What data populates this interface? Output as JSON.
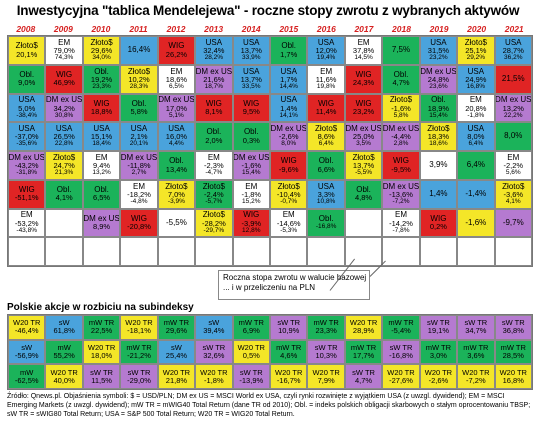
{
  "title": "Inwestycyjna \"tablica Mendelejewa\" - roczne stopy zwrotu z wybranych aktywów",
  "colors": {
    "year_text": "#d62020",
    "WIG": "#e02424",
    "USA": "#4aa3dc",
    "Obl.": "#1bb35a",
    "Złoto$": "#f4e628",
    "DM ex US": "#b57ad0",
    "EM": "#ffffff",
    "W20 TR": "#f4e628",
    "sW": "#4aa3dc",
    "mW TR": "#1bb35a",
    "sW TR": "#b57ad0"
  },
  "chart_data": [
    {
      "type": "table",
      "title": "Inwestycyjna \"tablica Mendelejewa\" - roczne stopy zwrotu z wybranych aktywów",
      "years": [
        "2008",
        "2009",
        "2010",
        "2011",
        "2012",
        "2013",
        "2014",
        "2015",
        "2016",
        "2017",
        "2018",
        "2019",
        "2020",
        "2021"
      ],
      "columns": [
        [
          {
            "name": "Złoto$",
            "v1": "20,1%",
            "v2": ""
          },
          {
            "name": "Obl.",
            "v1": "9,0%",
            "v2": ""
          },
          {
            "name": "USA",
            "v1": "5,0%",
            "v2": "-38,4%"
          },
          {
            "name": "USA",
            "v1": "-37,0%",
            "v2": "-35,6%"
          },
          {
            "name": "DM ex US",
            "v1": "-43,2%",
            "v2": "-31,8%"
          },
          {
            "name": "WIG",
            "v1": "-51,1%",
            "v2": ""
          },
          {
            "name": "EM",
            "v1": "-53,2%",
            "v2": "-43,8%"
          },
          {
            "name": "",
            "v1": "",
            "v2": ""
          }
        ],
        [
          {
            "name": "EM",
            "v1": "79,0%",
            "v2": "74,3%"
          },
          {
            "name": "WIG",
            "v1": "46,9%",
            "v2": ""
          },
          {
            "name": "DM ex US",
            "v1": "34,2%",
            "v2": "30,8%"
          },
          {
            "name": "USA",
            "v1": "26,5%",
            "v2": "22,8%"
          },
          {
            "name": "Złoto$",
            "v1": "24,7%",
            "v2": "21,3%"
          },
          {
            "name": "Obl.",
            "v1": "4,1%",
            "v2": ""
          },
          {
            "name": "",
            "v1": "",
            "v2": ""
          },
          {
            "name": "",
            "v1": "",
            "v2": ""
          }
        ],
        [
          {
            "name": "Złoto$",
            "v1": "29,6%",
            "v2": "34,0%"
          },
          {
            "name": "Obl.",
            "v1": "19,2%",
            "v2": "23,3%"
          },
          {
            "name": "WIG",
            "v1": "18,8%",
            "v2": ""
          },
          {
            "name": "USA",
            "v1": "15,1%",
            "v2": "18,4%"
          },
          {
            "name": "EM",
            "v1": "9,4%",
            "v2": "13,2%"
          },
          {
            "name": "Obl.",
            "v1": "6,5%",
            "v2": ""
          },
          {
            "name": "DM ex US",
            "v1": "8,9%",
            "v2": ""
          },
          {
            "name": "",
            "v1": "",
            "v2": ""
          }
        ],
        [
          {
            "name": "",
            "v1": "16,4%",
            "v2": ""
          },
          {
            "name": "Złoto$",
            "v1": "10,2%",
            "v2": "28,3%"
          },
          {
            "name": "Obl.",
            "v1": "5,8%",
            "v2": ""
          },
          {
            "name": "USA",
            "v1": "2,1%",
            "v2": "20,1%"
          },
          {
            "name": "DM ex US",
            "v1": "-11,8%",
            "v2": "2,7%"
          },
          {
            "name": "EM",
            "v1": "-18,2%",
            "v2": "-4,8%"
          },
          {
            "name": "WIG",
            "v1": "-20,8%",
            "v2": ""
          },
          {
            "name": "",
            "v1": "",
            "v2": ""
          }
        ],
        [
          {
            "name": "WIG",
            "v1": "26,2%",
            "v2": ""
          },
          {
            "name": "EM",
            "v1": "18,6%",
            "v2": "6,5%"
          },
          {
            "name": "DM ex US",
            "v1": "17,0%",
            "v2": "5,1%"
          },
          {
            "name": "USA",
            "v1": "16,0%",
            "v2": "4,4%"
          },
          {
            "name": "Obl.",
            "v1": "13,4%",
            "v2": ""
          },
          {
            "name": "Złoto$",
            "v1": "7,0%",
            "v2": "-3,9%"
          },
          {
            "name": "",
            "v1": "-5,5%",
            "v2": ""
          },
          {
            "name": "",
            "v1": "",
            "v2": ""
          }
        ],
        [
          {
            "name": "USA",
            "v1": "32,4%",
            "v2": "28,2%"
          },
          {
            "name": "DM ex US",
            "v1": "21,6%",
            "v2": "18,7%"
          },
          {
            "name": "WIG",
            "v1": "8,1%",
            "v2": ""
          },
          {
            "name": "Obl.",
            "v1": "2,0%",
            "v2": ""
          },
          {
            "name": "EM",
            "v1": "-2,3%",
            "v2": "-4,7%"
          },
          {
            "name": "Złoto$",
            "v1": "-2,4%",
            "v2": "-5,7%"
          },
          {
            "name": "Złoto$",
            "v1": "-28,2%",
            "v2": "-29,7%"
          },
          {
            "name": "",
            "v1": "",
            "v2": ""
          }
        ],
        [
          {
            "name": "USA",
            "v1": "13,7%",
            "v2": "33,9%"
          },
          {
            "name": "USA",
            "v1": "13,7%",
            "v2": "33,5%"
          },
          {
            "name": "WIG",
            "v1": "9,5%",
            "v2": ""
          },
          {
            "name": "Obl.",
            "v1": "0,3%",
            "v2": ""
          },
          {
            "name": "DM ex US",
            "v1": "-1,6%",
            "v2": "15,4%"
          },
          {
            "name": "EM",
            "v1": "-1,8%",
            "v2": "15,2%"
          },
          {
            "name": "WIG",
            "v1": "-3,9%",
            "v2": "12,8%"
          },
          {
            "name": "",
            "v1": "",
            "v2": ""
          }
        ],
        [
          {
            "name": "Obl.",
            "v1": "1,7%",
            "v2": ""
          },
          {
            "name": "USA",
            "v1": "1,7%",
            "v2": "14,4%"
          },
          {
            "name": "USA",
            "v1": "1,4%",
            "v2": "14,1%"
          },
          {
            "name": "DM ex US",
            "v1": "-2,6%",
            "v2": "8,0%"
          },
          {
            "name": "WIG",
            "v1": "-9,6%",
            "v2": ""
          },
          {
            "name": "Złoto$",
            "v1": "-10,4%",
            "v2": "-0,7%"
          },
          {
            "name": "EM",
            "v1": "-14,6%",
            "v2": "-5,3%"
          },
          {
            "name": "",
            "v1": "",
            "v2": ""
          }
        ],
        [
          {
            "name": "USA",
            "v1": "12,0%",
            "v2": "19,4%"
          },
          {
            "name": "EM",
            "v1": "11,6%",
            "v2": "19,8%"
          },
          {
            "name": "WIG",
            "v1": "11,4%",
            "v2": ""
          },
          {
            "name": "Złoto$",
            "v1": "8,6%",
            "v2": "6,4%"
          },
          {
            "name": "Obl.",
            "v1": "6,6%",
            "v2": ""
          },
          {
            "name": "USA",
            "v1": "3,3%",
            "v2": "10,8%"
          },
          {
            "name": "Obl.",
            "v1": "",
            "v2": "-16,8%"
          },
          {
            "name": "",
            "v1": "",
            "v2": ""
          }
        ],
        [
          {
            "name": "EM",
            "v1": "37,8%",
            "v2": "14,5%"
          },
          {
            "name": "WIG",
            "v1": "24,3%",
            "v2": ""
          },
          {
            "name": "WIG",
            "v1": "23,2%",
            "v2": ""
          },
          {
            "name": "DM ex US",
            "v1": "25,0%",
            "v2": "3,5%"
          },
          {
            "name": "Złoto$",
            "v1": "13,7%",
            "v2": "-5,5%"
          },
          {
            "name": "Obl.",
            "v1": "4,8%",
            "v2": ""
          },
          {
            "name": "",
            "v1": "",
            "v2": ""
          },
          {
            "name": "",
            "v1": "",
            "v2": ""
          }
        ],
        [
          {
            "name": "",
            "v1": "7,5%",
            "v2": ""
          },
          {
            "name": "Obl.",
            "v1": "4,7%",
            "v2": ""
          },
          {
            "name": "Złoto$",
            "v1": "-1,6%",
            "v2": "5,8%"
          },
          {
            "name": "DM ex US",
            "v1": "-4,4%",
            "v2": "2,8%"
          },
          {
            "name": "WIG",
            "v1": "-9,5%",
            "v2": ""
          },
          {
            "name": "DM ex US",
            "v1": "-13,6%",
            "v2": "-7,2%"
          },
          {
            "name": "EM",
            "v1": "-14,2%",
            "v2": "-7,8%"
          },
          {
            "name": "",
            "v1": "",
            "v2": ""
          }
        ],
        [
          {
            "name": "USA",
            "v1": "31,5%",
            "v2": "23,2%"
          },
          {
            "name": "DM ex US",
            "v1": "24,8%",
            "v2": "23,6%"
          },
          {
            "name": "Obl.",
            "v1": "18,9%",
            "v2": "15,4%"
          },
          {
            "name": "Złoto$",
            "v1": "18,3%",
            "v2": "18,6%"
          },
          {
            "name": "",
            "v1": "3,9%",
            "v2": ""
          },
          {
            "name": "",
            "v1": "1,4%",
            "v2": ""
          },
          {
            "name": "WIG",
            "v1": "0,2%",
            "v2": ""
          },
          {
            "name": "",
            "v1": "",
            "v2": ""
          }
        ],
        [
          {
            "name": "Złoto$",
            "v1": "25,1%",
            "v2": "29,2%"
          },
          {
            "name": "USA",
            "v1": "24,9%",
            "v2": "16,8%"
          },
          {
            "name": "EM",
            "v1": "20,8%",
            "v2": "-1,8%"
          },
          {
            "name": "USA",
            "v1": "8,0%",
            "v2": "6,4%"
          },
          {
            "name": "",
            "v1": "6,4%",
            "v2": ""
          },
          {
            "name": "",
            "v1": "-1,4%",
            "v2": ""
          },
          {
            "name": "",
            "v1": "-1,6%",
            "v2": ""
          },
          {
            "name": "",
            "v1": "",
            "v2": ""
          }
        ],
        [
          {
            "name": "USA",
            "v1": "28,7%",
            "v2": "36,2%"
          },
          {
            "name": "",
            "v1": "21,5%",
            "v2": ""
          },
          {
            "name": "DM ex US",
            "v1": "13,2%",
            "v2": "22,2%"
          },
          {
            "name": "",
            "v1": "8,0%",
            "v2": ""
          },
          {
            "name": "EM",
            "v1": "-2,2%",
            "v2": "5,6%"
          },
          {
            "name": "Złoto$",
            "v1": "-3,6%",
            "v2": "4,1%"
          },
          {
            "name": "",
            "v1": "-9,7%",
            "v2": ""
          },
          {
            "name": "",
            "v1": "",
            "v2": ""
          }
        ]
      ],
      "cell_colors": [
        [
          "yellow",
          "green",
          "blue",
          "blue",
          "purple",
          "red",
          "white",
          "white"
        ],
        [
          "white",
          "red",
          "purple",
          "blue",
          "yellow",
          "green",
          "white",
          "white"
        ],
        [
          "yellow",
          "green",
          "red",
          "blue",
          "white",
          "green",
          "purple",
          "white"
        ],
        [
          "blue",
          "yellow",
          "green",
          "blue",
          "purple",
          "white",
          "red",
          "white"
        ],
        [
          "red",
          "white",
          "purple",
          "blue",
          "green",
          "yellow",
          "white",
          "white"
        ],
        [
          "blue",
          "purple",
          "red",
          "green",
          "white",
          "green",
          "yellow",
          "white"
        ],
        [
          "blue",
          "blue",
          "red",
          "green",
          "purple",
          "white",
          "red",
          "white"
        ],
        [
          "green",
          "blue",
          "blue",
          "purple",
          "red",
          "yellow",
          "white",
          "white"
        ],
        [
          "blue",
          "white",
          "red",
          "yellow",
          "green",
          "blue",
          "green",
          "white"
        ],
        [
          "white",
          "red",
          "red",
          "purple",
          "yellow",
          "green",
          "white",
          "white"
        ],
        [
          "green",
          "green",
          "yellow",
          "purple",
          "red",
          "purple",
          "white",
          "white"
        ],
        [
          "blue",
          "purple",
          "green",
          "yellow",
          "white",
          "blue",
          "red",
          "white"
        ],
        [
          "yellow",
          "blue",
          "white",
          "blue",
          "green",
          "blue",
          "yellow",
          "white"
        ],
        [
          "blue",
          "red",
          "purple",
          "green",
          "white",
          "yellow",
          "purple",
          "white"
        ]
      ]
    },
    {
      "type": "table",
      "title": "Polskie akcje w rozbiciu na subindeksy",
      "rows": [
        [
          {
            "name": "W20 TR",
            "v1": "-46,4%"
          },
          {
            "name": "sW",
            "v1": "61,8%"
          },
          {
            "name": "mW TR",
            "v1": "22,5%"
          },
          {
            "name": "W20 TR",
            "v1": "-18,1%"
          },
          {
            "name": "mW TR",
            "v1": "29,6%"
          },
          {
            "name": "sW",
            "v1": "39,4%"
          },
          {
            "name": "mW TR",
            "v1": "6,9%"
          },
          {
            "name": "sW TR",
            "v1": "10,9%"
          },
          {
            "name": "mW TR",
            "v1": "23,3%"
          },
          {
            "name": "W20 TR",
            "v1": "28,9%"
          },
          {
            "name": "mW TR",
            "v1": "-5,4%"
          },
          {
            "name": "sW TR",
            "v1": "19,1%"
          },
          {
            "name": "sW TR",
            "v1": "34,7%"
          },
          {
            "name": "sW TR",
            "v1": "36,8%"
          }
        ],
        [
          {
            "name": "sW",
            "v1": "-56,9%"
          },
          {
            "name": "mW",
            "v1": "55,2%"
          },
          {
            "name": "W20 TR",
            "v1": "18,0%"
          },
          {
            "name": "mW TR",
            "v1": "-21,2%"
          },
          {
            "name": "sW",
            "v1": "25,4%"
          },
          {
            "name": "sW TR",
            "v1": "32,6%"
          },
          {
            "name": "W20 TR",
            "v1": "0,5%"
          },
          {
            "name": "mW TR",
            "v1": "4,6%"
          },
          {
            "name": "sW TR",
            "v1": "10,3%"
          },
          {
            "name": "mW TR",
            "v1": "17,7%"
          },
          {
            "name": "sW TR",
            "v1": "-16,8%"
          },
          {
            "name": "mW TR",
            "v1": "3,0%"
          },
          {
            "name": "mW TR",
            "v1": "3,6%"
          },
          {
            "name": "mW TR",
            "v1": "28,5%"
          }
        ],
        [
          {
            "name": "mW",
            "v1": "-62,5%"
          },
          {
            "name": "W20 TR",
            "v1": "40,0%"
          },
          {
            "name": "sW TR",
            "v1": "11,5%"
          },
          {
            "name": "sW TR",
            "v1": "-29,0%"
          },
          {
            "name": "W20 TR",
            "v1": "21,8%"
          },
          {
            "name": "W20 TR",
            "v1": "-1,8%"
          },
          {
            "name": "sW TR",
            "v1": "-13,9%"
          },
          {
            "name": "W20 TR",
            "v1": "-16,7%"
          },
          {
            "name": "W20 TR",
            "v1": "7,9%"
          },
          {
            "name": "sW TR",
            "v1": "4,7%"
          },
          {
            "name": "W20 TR",
            "v1": "-27,6%"
          },
          {
            "name": "W20 TR",
            "v1": "-2,6%"
          },
          {
            "name": "W20 TR",
            "v1": "-7,2%"
          },
          {
            "name": "W20 TR",
            "v1": "16,8%"
          }
        ]
      ],
      "cell_colors": [
        [
          "yellow",
          "blue",
          "green",
          "yellow",
          "green",
          "blue",
          "green",
          "purple",
          "green",
          "yellow",
          "green",
          "purple",
          "purple",
          "purple"
        ],
        [
          "blue",
          "green",
          "yellow",
          "green",
          "blue",
          "purple",
          "yellow",
          "green",
          "purple",
          "green",
          "purple",
          "green",
          "green",
          "green"
        ],
        [
          "green",
          "yellow",
          "purple",
          "purple",
          "yellow",
          "yellow",
          "purple",
          "yellow",
          "yellow",
          "purple",
          "yellow",
          "yellow",
          "yellow",
          "yellow"
        ]
      ]
    }
  ],
  "annotation": {
    "line1": "Roczna stopa zwrotu w walucie  bazowej",
    "line2": "... i w przeliczeniu na PLN"
  },
  "subtitle": "Polskie akcje w rozbiciu na subindeksy",
  "footer": "Źródło: Qnews.pl. Objaśnienia symboli: $ = USD/PLN; DM ex US = MSCI World ex USA, czyli rynki rozwinięte z wyjątkiem USA (z uwzgl. dywidend); EM = MSCI Emerging Markets (z uwzgl. dywidend); mW TR = mWIG40 Total Return (dane TR od 2010); Obl. = indeks polskich obligacji skarbowych o stałym oprocentowaniu TBSP; sW TR = sWIG80 Total Return; USA = S&P 500 Total Return; W20 TR = WIG20 Total Return."
}
